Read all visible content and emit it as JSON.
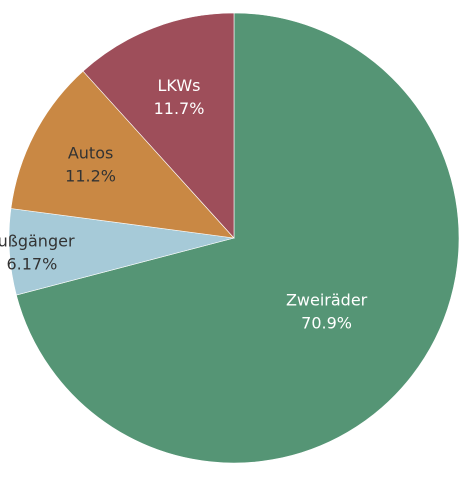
{
  "chart_data": {
    "type": "pie",
    "title": "",
    "start": "top",
    "direction": "clockwise",
    "slices": [
      {
        "label": "Zweiräder",
        "value": 70.9,
        "value_label": "70.9%",
        "color": "#559575",
        "label_color": "#ffffff"
      },
      {
        "label": "Fußgänger",
        "value": 6.17,
        "value_label": "6.17%",
        "color": "#a6cad8",
        "label_color": "#333333"
      },
      {
        "label": "Autos",
        "value": 11.2,
        "value_label": "11.2%",
        "color": "#c98844",
        "label_color": "#333333"
      },
      {
        "label": "LKWs",
        "value": 11.7,
        "value_label": "11.7%",
        "color": "#9e4e5a",
        "label_color": "#ffffff"
      }
    ]
  }
}
